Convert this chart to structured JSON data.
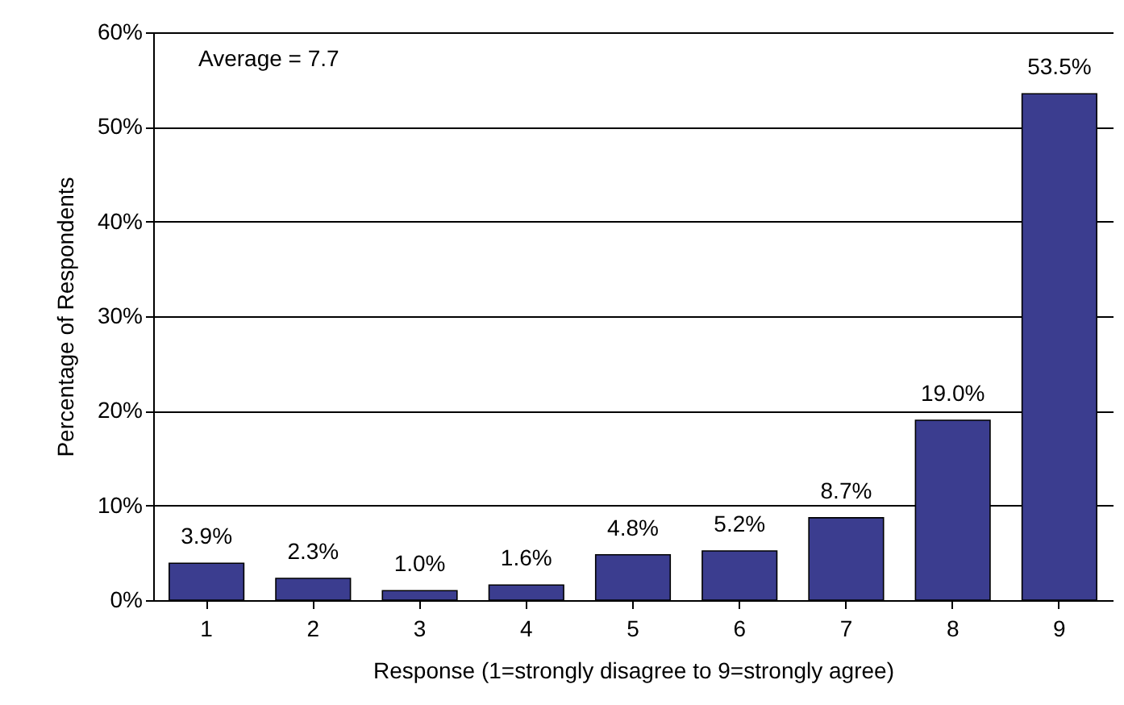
{
  "chart_data": {
    "type": "bar",
    "xlabel": "Response (1=strongly disagree to 9=strongly agree)",
    "ylabel": "Percentage of Respondents",
    "categories": [
      "1",
      "2",
      "3",
      "4",
      "5",
      "6",
      "7",
      "8",
      "9"
    ],
    "values": [
      3.9,
      2.3,
      1.0,
      1.6,
      4.8,
      5.2,
      8.7,
      19.0,
      53.5
    ],
    "value_labels": [
      "3.9%",
      "2.3%",
      "1.0%",
      "1.6%",
      "4.8%",
      "5.2%",
      "8.7%",
      "19.0%",
      "53.5%"
    ],
    "color": "#3b3d8f",
    "ylim": [
      0,
      60
    ],
    "yticks": [
      {
        "value": 0,
        "label": "0%"
      },
      {
        "value": 10,
        "label": "10%"
      },
      {
        "value": 20,
        "label": "20%"
      },
      {
        "value": 30,
        "label": "30%"
      },
      {
        "value": 40,
        "label": "40%"
      },
      {
        "value": 50,
        "label": "50%"
      },
      {
        "value": 60,
        "label": "60%"
      }
    ],
    "grid": "y",
    "annotations": [
      "Average = 7.7"
    ]
  }
}
